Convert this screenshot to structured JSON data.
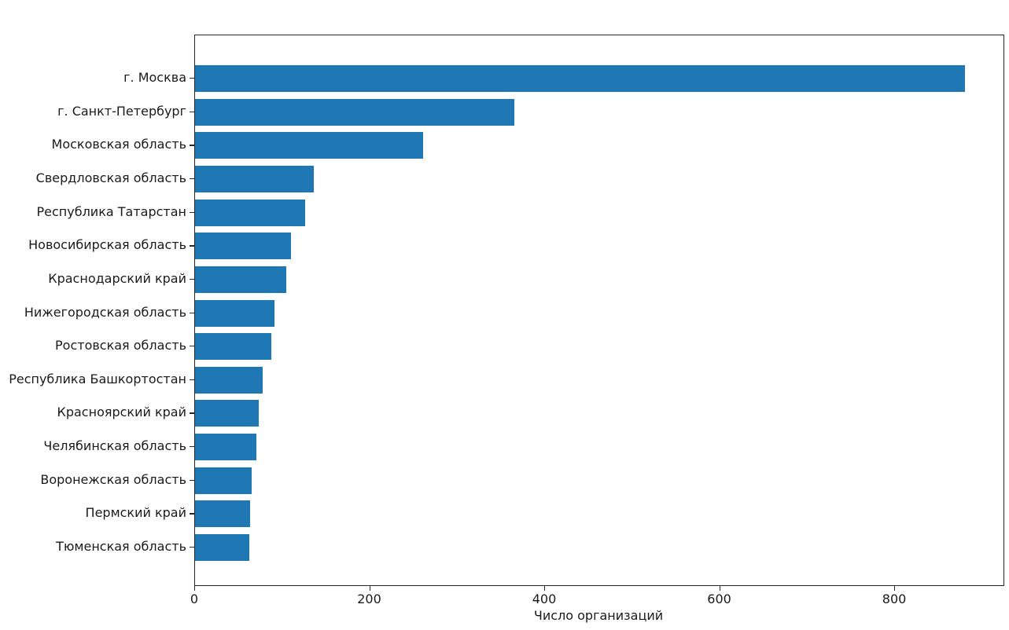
{
  "figure": {
    "background": "#ffffff",
    "axis_color": "#262626",
    "text_color": "#1a1a1a"
  },
  "chart_data": {
    "type": "bar",
    "orientation": "horizontal",
    "title": "",
    "xlabel": "Число организаций",
    "ylabel": "",
    "categories": [
      "г. Москва",
      "г. Санкт-Петербург",
      "Московская область",
      "Свердловская область",
      "Республика Татарстан",
      "Новосибирская область",
      "Краснодарский край",
      "Нижегородская область",
      "Ростовская область",
      "Республика Башкортостан",
      "Красноярский край",
      "Челябинская область",
      "Воронежская область",
      "Пермский край",
      "Тюменская область"
    ],
    "values": [
      880,
      365,
      261,
      136,
      126,
      110,
      104,
      91,
      87,
      77,
      73,
      70,
      65,
      63,
      62
    ],
    "xlim": [
      0,
      924
    ],
    "xticks": [
      0,
      200,
      400,
      600,
      800
    ],
    "bar_color": "#1f77b4",
    "grid": false,
    "legend": null
  }
}
